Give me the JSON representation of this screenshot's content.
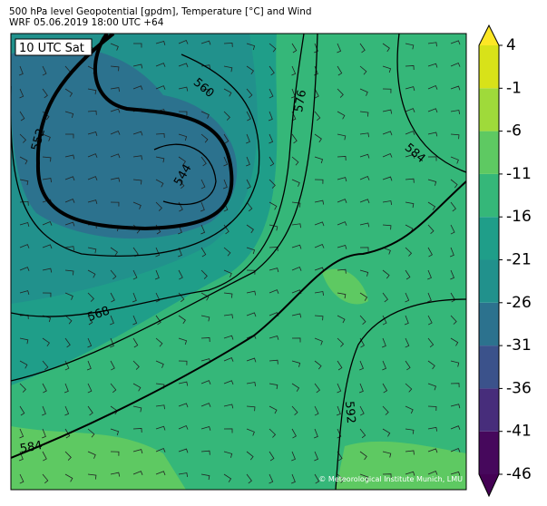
{
  "header": {
    "title": "500 hPa level Geopotential [gpdm], Temperature [°C] and Wind",
    "subtitle": "WRF 05.06.2019 18:00 UTC +64"
  },
  "map": {
    "time_label": "10 UTC Sat",
    "contour_labels": [
      "552",
      "560",
      "576",
      "584",
      "544",
      "568",
      "584",
      "592"
    ],
    "credit": "© Meteorological Institute Munich, LMU"
  },
  "colorbar": {
    "range": [
      -46,
      4
    ],
    "ticks": [
      4,
      -1,
      -6,
      -11,
      -16,
      -21,
      -26,
      -31,
      -36,
      -41,
      -46
    ],
    "colors": [
      "#46085c",
      "#472d7b",
      "#3b528b",
      "#2c728e",
      "#21918c",
      "#1f9e89",
      "#35b779",
      "#5ec962",
      "#9fda3a",
      "#d8e219"
    ],
    "under_color": "#440154",
    "over_color": "#fde725"
  }
}
